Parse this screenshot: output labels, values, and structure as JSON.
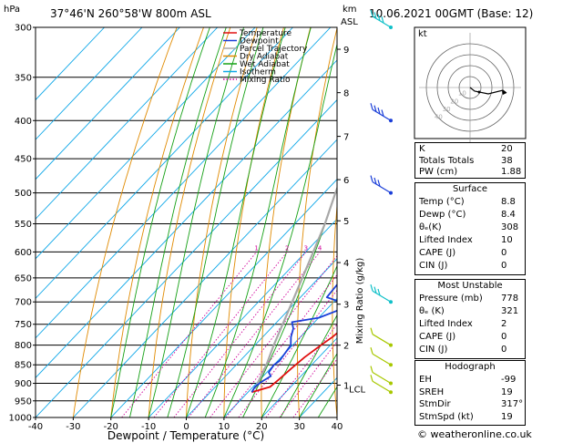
{
  "header": {
    "location": "37°46'N  260°58'W  800m  ASL",
    "datetime": "10.06.2021  00GMT  (Base: 12)",
    "hpa_label": "hPa",
    "km_label": "km",
    "asl_label": "ASL"
  },
  "footer": "© weatheronline.co.uk",
  "chart_data": {
    "type": "line",
    "xlabel": "Dewpoint / Temperature (°C)",
    "ylabel_right": "Mixing Ratio (g/kg)",
    "xlim": [
      -40,
      40
    ],
    "ylim_hpa": [
      1000,
      300
    ],
    "x_ticks": [
      -40,
      -30,
      -20,
      -10,
      0,
      10,
      20,
      30,
      40
    ],
    "pressure_ticks": [
      300,
      350,
      400,
      450,
      500,
      550,
      600,
      650,
      700,
      750,
      800,
      850,
      900,
      950,
      1000
    ],
    "km_ticks": [
      {
        "label": "9",
        "p": 321
      },
      {
        "label": "8",
        "p": 367
      },
      {
        "label": "7",
        "p": 420
      },
      {
        "label": "6",
        "p": 480
      },
      {
        "label": "5",
        "p": 545
      },
      {
        "label": "4",
        "p": 620
      },
      {
        "label": "3",
        "p": 705
      },
      {
        "label": "2",
        "p": 800
      },
      {
        "label": "1",
        "p": 905
      }
    ],
    "lcl_label": "LCL",
    "lcl_p": 915,
    "mixing_ratio_labels": [
      "1",
      "2",
      "3",
      "4",
      "6",
      "8",
      "10",
      "16",
      "20",
      "25"
    ],
    "mixing_ratio_values": [
      1,
      2,
      3,
      4,
      6,
      8,
      10,
      16,
      20,
      25
    ],
    "legend": [
      "Temperature",
      "Dewpoint",
      "Parcel Trajectory",
      "Dry Adiabat",
      "Wet Adiabat",
      "Isotherm",
      "Mixing Ratio"
    ],
    "colors": {
      "temperature": "#e01010",
      "dewpoint": "#1a3ed8",
      "parcel": "#a8a8a8",
      "dry_adiabat": "#e08a00",
      "wet_adiabat": "#14a014",
      "isotherm": "#10a8e8",
      "mixing_ratio": "#d0009a",
      "wind": "#1a3ed8"
    },
    "series": [
      {
        "name": "Temperature",
        "points": [
          [
            925,
            11.0
          ],
          [
            910,
            14.5
          ],
          [
            890,
            15.0
          ],
          [
            860,
            15.5
          ],
          [
            830,
            16.2
          ],
          [
            800,
            17.5
          ],
          [
            780,
            18.5
          ],
          [
            760,
            19.0
          ],
          [
            740,
            19.0
          ],
          [
            720,
            18.8
          ],
          [
            700,
            17.5
          ],
          [
            680,
            19.0
          ],
          [
            660,
            18.0
          ],
          [
            640,
            16.5
          ],
          [
            620,
            14.5
          ],
          [
            600,
            12.5
          ],
          [
            580,
            10.5
          ],
          [
            560,
            8.5
          ],
          [
            540,
            6.5
          ],
          [
            520,
            5.5
          ],
          [
            500,
            3.5
          ],
          [
            480,
            1.8
          ],
          [
            460,
            -0.5
          ],
          [
            440,
            -2.5
          ],
          [
            420,
            -4.5
          ],
          [
            400,
            -6.5
          ],
          [
            380,
            -8.0
          ],
          [
            360,
            -10.0
          ],
          [
            340,
            -12.5
          ],
          [
            320,
            -15.0
          ],
          [
            300,
            -18.0
          ]
        ]
      },
      {
        "name": "Dewpoint",
        "points": [
          [
            925,
            11.0
          ],
          [
            910,
            10.5
          ],
          [
            895,
            11.0
          ],
          [
            880,
            12.0
          ],
          [
            870,
            10.5
          ],
          [
            850,
            10.0
          ],
          [
            840,
            10.5
          ],
          [
            820,
            10.0
          ],
          [
            800,
            9.5
          ],
          [
            780,
            7.5
          ],
          [
            760,
            6.0
          ],
          [
            745,
            4.0
          ],
          [
            735,
            10.0
          ],
          [
            720,
            13.0
          ],
          [
            705,
            14.0
          ],
          [
            690,
            7.0
          ],
          [
            660,
            6.5
          ],
          [
            630,
            4.5
          ],
          [
            600,
            2.5
          ],
          [
            560,
            0.5
          ],
          [
            535,
            -1.0
          ],
          [
            525,
            -2.5
          ],
          [
            510,
            -10.0
          ],
          [
            500,
            -13.0
          ],
          [
            490,
            -14.5
          ],
          [
            480,
            -13.0
          ],
          [
            470,
            -10.0
          ],
          [
            460,
            -7.5
          ],
          [
            450,
            -9.0
          ],
          [
            440,
            -14.0
          ],
          [
            430,
            -19.0
          ],
          [
            425,
            -23.0
          ],
          [
            410,
            -19.0
          ],
          [
            400,
            -19.5
          ],
          [
            390,
            -23.0
          ],
          [
            375,
            -28.0
          ],
          [
            350,
            -29.0
          ],
          [
            320,
            -30.5
          ],
          [
            300,
            -33.0
          ]
        ]
      },
      {
        "name": "Parcel Trajectory",
        "points": [
          [
            915,
            11.0
          ],
          [
            850,
            8.0
          ],
          [
            800,
            5.0
          ],
          [
            700,
            -1.0
          ],
          [
            600,
            -8.0
          ],
          [
            550,
            -12.0
          ],
          [
            500,
            -17.0
          ],
          [
            450,
            -22.0
          ],
          [
            400,
            -28.0
          ],
          [
            350,
            -34.0
          ],
          [
            300,
            -41.0
          ]
        ]
      }
    ]
  },
  "hodograph": {
    "label": "kt",
    "ring_labels": [
      "10",
      "20",
      "30",
      "40"
    ]
  },
  "winds": [
    {
      "p": 300,
      "color": "#10c0c8",
      "dir": 240,
      "spd": 45
    },
    {
      "p": 400,
      "color": "#1a3ed8",
      "dir": 250,
      "spd": 35
    },
    {
      "p": 500,
      "color": "#1a3ed8",
      "dir": 250,
      "spd": 30
    },
    {
      "p": 700,
      "color": "#10c0c8",
      "dir": 245,
      "spd": 25
    },
    {
      "p": 800,
      "color": "#a8c800",
      "dir": 200,
      "spd": 10
    },
    {
      "p": 850,
      "color": "#a8c800",
      "dir": 190,
      "spd": 10
    },
    {
      "p": 900,
      "color": "#a8c800",
      "dir": 180,
      "spd": 5
    },
    {
      "p": 925,
      "color": "#a8c800",
      "dir": 170,
      "spd": 5
    }
  ],
  "indices": {
    "top": [
      {
        "label": "K",
        "value": "20"
      },
      {
        "label": "Totals Totals",
        "value": "38"
      },
      {
        "label": "PW (cm)",
        "value": "1.88"
      }
    ],
    "surface": {
      "title": "Surface",
      "rows": [
        {
          "label": "Temp (°C)",
          "value": "8.8"
        },
        {
          "label": "Dewp (°C)",
          "value": "8.4"
        },
        {
          "label": "θₑ(K)",
          "value": "308"
        },
        {
          "label": "Lifted Index",
          "value": "10"
        },
        {
          "label": "CAPE (J)",
          "value": "0"
        },
        {
          "label": "CIN (J)",
          "value": "0"
        }
      ]
    },
    "most_unstable": {
      "title": "Most Unstable",
      "rows": [
        {
          "label": "Pressure (mb)",
          "value": "778"
        },
        {
          "label": "θₑ (K)",
          "value": "321"
        },
        {
          "label": "Lifted Index",
          "value": "2"
        },
        {
          "label": "CAPE (J)",
          "value": "0"
        },
        {
          "label": "CIN (J)",
          "value": "0"
        }
      ]
    },
    "hodograph_box": {
      "title": "Hodograph",
      "rows": [
        {
          "label": "EH",
          "value": "-99"
        },
        {
          "label": "SREH",
          "value": "19"
        },
        {
          "label": "StmDir",
          "value": "317°"
        },
        {
          "label": "StmSpd (kt)",
          "value": "19"
        }
      ]
    }
  }
}
